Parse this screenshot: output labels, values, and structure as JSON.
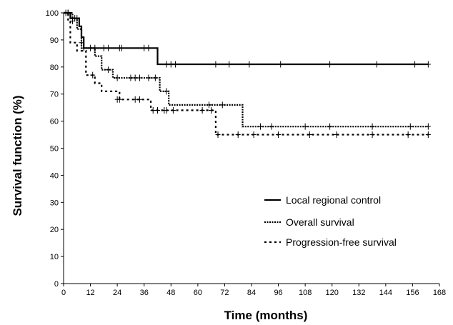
{
  "chart_data": {
    "type": "line",
    "subtype": "kaplan-meier step",
    "xlabel": "Time (months)",
    "ylabel": "Survival function (%)",
    "xlim": [
      0,
      168
    ],
    "ylim": [
      0,
      100
    ],
    "x_ticks": [
      0,
      12,
      24,
      36,
      48,
      60,
      72,
      84,
      96,
      108,
      120,
      132,
      144,
      156,
      168
    ],
    "y_ticks": [
      0,
      10,
      20,
      30,
      40,
      50,
      60,
      70,
      80,
      90,
      100
    ],
    "grid": false,
    "legend_position": "lower-right",
    "series": [
      {
        "name": "Local regional control",
        "line_style": "solid",
        "points": [
          [
            0,
            100
          ],
          [
            3,
            100
          ],
          [
            3,
            98
          ],
          [
            7,
            98
          ],
          [
            7,
            95
          ],
          [
            8,
            95
          ],
          [
            8,
            91
          ],
          [
            9,
            91
          ],
          [
            9,
            87
          ],
          [
            42,
            87
          ],
          [
            42,
            81
          ],
          [
            163,
            81
          ]
        ],
        "censored": [
          [
            2,
            100
          ],
          [
            5,
            98
          ],
          [
            6,
            98
          ],
          [
            14,
            87
          ],
          [
            18,
            87
          ],
          [
            20,
            87
          ],
          [
            25,
            87
          ],
          [
            26,
            87
          ],
          [
            36,
            87
          ],
          [
            38,
            87
          ],
          [
            46,
            81
          ],
          [
            48,
            81
          ],
          [
            50,
            81
          ],
          [
            68,
            81
          ],
          [
            74,
            81
          ],
          [
            83,
            81
          ],
          [
            97,
            81
          ],
          [
            119,
            81
          ],
          [
            140,
            81
          ],
          [
            157,
            81
          ],
          [
            163,
            81
          ]
        ]
      },
      {
        "name": "Overall survival",
        "line_style": "dotted",
        "points": [
          [
            0,
            100
          ],
          [
            4,
            100
          ],
          [
            4,
            98
          ],
          [
            6,
            98
          ],
          [
            6,
            94
          ],
          [
            8,
            94
          ],
          [
            8,
            87
          ],
          [
            14,
            87
          ],
          [
            14,
            84
          ],
          [
            17,
            84
          ],
          [
            17,
            79
          ],
          [
            22,
            79
          ],
          [
            22,
            76
          ],
          [
            43,
            76
          ],
          [
            43,
            71
          ],
          [
            47,
            71
          ],
          [
            47,
            66
          ],
          [
            80,
            66
          ],
          [
            80,
            58
          ],
          [
            163,
            58
          ]
        ],
        "censored": [
          [
            2,
            100
          ],
          [
            9,
            87
          ],
          [
            12,
            87
          ],
          [
            20,
            79
          ],
          [
            24,
            76
          ],
          [
            30,
            76
          ],
          [
            32,
            76
          ],
          [
            34,
            76
          ],
          [
            38,
            76
          ],
          [
            41,
            76
          ],
          [
            46,
            71
          ],
          [
            65,
            66
          ],
          [
            71,
            66
          ],
          [
            88,
            58
          ],
          [
            93,
            58
          ],
          [
            108,
            58
          ],
          [
            119,
            58
          ],
          [
            138,
            58
          ],
          [
            155,
            58
          ],
          [
            163,
            58
          ]
        ]
      },
      {
        "name": "Progression-free survival",
        "line_style": "dashed",
        "points": [
          [
            0,
            100
          ],
          [
            2,
            100
          ],
          [
            2,
            97
          ],
          [
            3,
            97
          ],
          [
            3,
            89
          ],
          [
            6,
            89
          ],
          [
            6,
            86
          ],
          [
            10,
            86
          ],
          [
            10,
            77
          ],
          [
            14,
            77
          ],
          [
            14,
            74
          ],
          [
            17,
            74
          ],
          [
            17,
            71
          ],
          [
            25,
            71
          ],
          [
            25,
            68
          ],
          [
            39,
            68
          ],
          [
            39,
            64
          ],
          [
            50,
            64
          ],
          [
            50,
            64
          ],
          [
            68,
            64
          ],
          [
            68,
            55
          ],
          [
            163,
            55
          ]
        ],
        "censored": [
          [
            1,
            100
          ],
          [
            4,
            97
          ],
          [
            8,
            89
          ],
          [
            13,
            77
          ],
          [
            24,
            68
          ],
          [
            25,
            68
          ],
          [
            32,
            68
          ],
          [
            34,
            68
          ],
          [
            40,
            64
          ],
          [
            42,
            64
          ],
          [
            45,
            64
          ],
          [
            46,
            64
          ],
          [
            49,
            64
          ],
          [
            62,
            64
          ],
          [
            66,
            64
          ],
          [
            69,
            55
          ],
          [
            78,
            55
          ],
          [
            85,
            55
          ],
          [
            96,
            55
          ],
          [
            110,
            55
          ],
          [
            122,
            55
          ],
          [
            138,
            55
          ],
          [
            154,
            55
          ],
          [
            163,
            55
          ]
        ]
      }
    ]
  }
}
